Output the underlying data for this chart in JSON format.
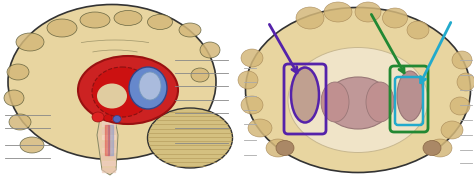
{
  "bg_color": "#ffffff",
  "fig_width": 4.74,
  "fig_height": 1.83,
  "dpi": 100,
  "left_brain": {
    "brain_fill": "#e8d5a0",
    "brain_stroke": "#333333",
    "gyri_fill": "#d4b87a",
    "gyri_stroke": "#555533",
    "cerebellum_fill": "#d4c080",
    "cerebellum_stripe": "#b8a060",
    "basal_outer_fill": "#cc2222",
    "basal_outer_edge": "#991111",
    "basal_inner_fill": "#dd1111",
    "basal_inner_edge": "#881111",
    "blue_fill": "#6688cc",
    "blue_edge": "#334488",
    "blue_dot_fill": "#5566bb",
    "thal_fill": "#7799bb",
    "red_spot1": "#dd2222",
    "red_spot2": "#cc1111",
    "brainstem_fill": "#e8cda8",
    "brainstem_edge": "#888866",
    "brainstem_stripe_colors": [
      "#f0d0c0",
      "#e8c8b8",
      "#f8d8c8",
      "#ecc8b0",
      "#f4d0bc",
      "#e8c4b0",
      "#f0ccc0",
      "#eac8b4"
    ],
    "label_line_color": "#888888"
  },
  "right_brain": {
    "brain_fill": "#e8d5a0",
    "brain_stroke": "#333333",
    "inner_fill": "#f0e4c8",
    "inner_edge": "#c8b890",
    "caudate_fill": "#c0a090",
    "thalamus_fill": "#c09898",
    "thalamus_edge": "#997777",
    "putamen_fill": "#b89090",
    "putamen_edge": "#997777",
    "spot_fill": "#aa8866",
    "purple_line": "#5522aa",
    "green_line": "#228833",
    "cyan_line": "#22aacc",
    "label_line_color": "#aaaaaa"
  }
}
